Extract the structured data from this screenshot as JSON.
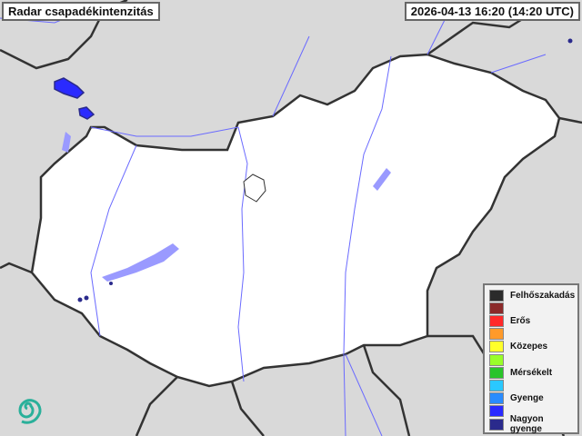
{
  "title": "Radar csapadékintenzitás",
  "timestamp": "2026-04-13 16:20 (14:20 UTC)",
  "legend": [
    {
      "label": "Felhőszakadás",
      "color": "#2b2b2b"
    },
    {
      "label": "",
      "color": "#8b2a2a"
    },
    {
      "label": "Erős",
      "color": "#ff2a2a"
    },
    {
      "label": "",
      "color": "#ff9a2a"
    },
    {
      "label": "Közepes",
      "color": "#ffff2a"
    },
    {
      "label": "",
      "color": "#99ff2a"
    },
    {
      "label": "Mérsékelt",
      "color": "#2ac42a"
    },
    {
      "label": "",
      "color": "#2ac8ff"
    },
    {
      "label": "Gyenge",
      "color": "#2a8cff"
    },
    {
      "label": "",
      "color": "#2a2aff"
    },
    {
      "label": "Nagyon gyenge",
      "color": "#2a2a8c"
    }
  ],
  "colors": {
    "country": "#ffffff",
    "surroundings": "#d9d9d9",
    "border": "#333333",
    "rivers": "#6a6aff",
    "logo": "#2ab09a"
  },
  "logo": "swirl-logo"
}
